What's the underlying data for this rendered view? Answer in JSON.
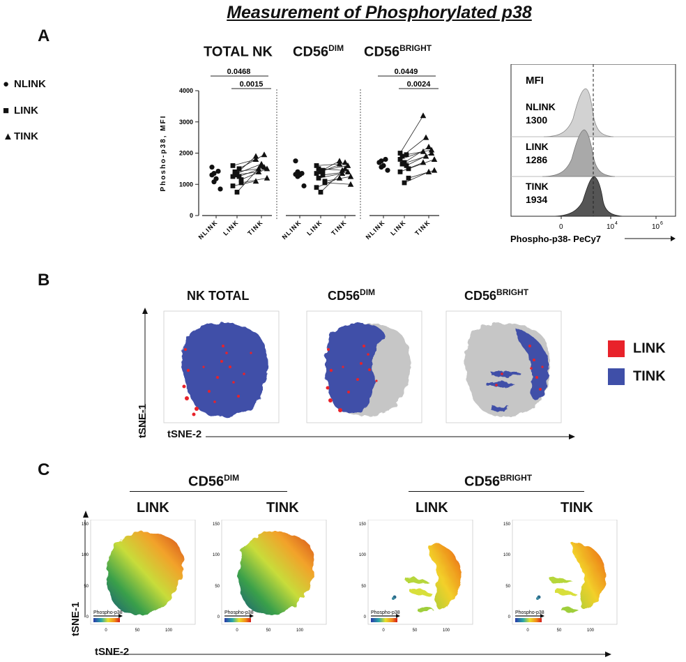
{
  "figure": {
    "title": "Measurement of Phosphorylated p38",
    "panels": {
      "a": "A",
      "b": "B",
      "c": "C"
    }
  },
  "legend_a": [
    {
      "symbol": "●",
      "label": "NLINK"
    },
    {
      "symbol": "■",
      "label": "LINK"
    },
    {
      "symbol": "▲",
      "label": "TINK"
    }
  ],
  "groups": [
    {
      "base": "TOTAL NK",
      "sup": ""
    },
    {
      "base": "CD56",
      "sup": "DIM"
    },
    {
      "base": "CD56",
      "sup": "BRIGHT"
    }
  ],
  "histogram": {
    "mfi_label": "MFI",
    "rows": [
      {
        "name": "NLINK",
        "value": "1300",
        "color": "#d2d2d2"
      },
      {
        "name": "LINK",
        "value": "1286",
        "color": "#a9a9a9"
      },
      {
        "name": "TINK",
        "value": "1934",
        "color": "#555555"
      }
    ],
    "ticks": [
      "0",
      "10",
      "10"
    ],
    "tick_exps": [
      "",
      "4",
      "6"
    ],
    "xlabel": "Phospho-p38- PeCy7"
  },
  "panel_b": {
    "plots": [
      {
        "base": "NK TOTAL",
        "sup": ""
      },
      {
        "base": "CD56",
        "sup": "DIM"
      },
      {
        "base": "CD56",
        "sup": "BRIGHT"
      }
    ],
    "ylabel": "tSNE-1",
    "xlabel": "tSNE-2",
    "legend": [
      {
        "label": "LINK",
        "color": "#e8222a"
      },
      {
        "label": "TINK",
        "color": "#3f4fa8"
      }
    ]
  },
  "panel_c": {
    "groups": [
      {
        "base": "CD56",
        "sup": "DIM"
      },
      {
        "base": "CD56",
        "sup": "BRIGHT"
      }
    ],
    "plots": [
      "LINK",
      "TINK",
      "LINK",
      "TINK"
    ],
    "colorbar_label": "Phospho-p38",
    "ylabel": "tSNE-1",
    "xlabel": "tSNE-2"
  },
  "chart_data": {
    "type": "scatter",
    "title": "Measurement of Phosphorylated p38",
    "ylabel": "Phosho-p38, MFI",
    "ylim": [
      0,
      4000
    ],
    "yticks": [
      "0",
      "1000",
      "2000",
      "3000",
      "4000"
    ],
    "groups": [
      {
        "name": "TOTAL NK",
        "categories": [
          "NLINK",
          "LINK",
          "TINK"
        ],
        "series": [
          {
            "name": "NLINK",
            "values": [
              1300,
              1350,
              1180,
              1420,
              850,
              1550,
              1080
            ]
          },
          {
            "name": "LINK",
            "values": [
              1600,
              1400,
              1350,
              1250,
              1050,
              950,
              1300,
              750,
              1500,
              1150,
              1250
            ]
          },
          {
            "name": "TINK",
            "values": [
              1800,
              1500,
              1650,
              1550,
              1200,
              1100,
              1400,
              1600,
              1950,
              1500,
              1900
            ]
          }
        ],
        "significance": [
          "0.0468",
          "0.0015"
        ]
      },
      {
        "name": "CD56 DIM",
        "categories": [
          "NLINK",
          "LINK",
          "TINK"
        ],
        "series": [
          {
            "name": "NLINK",
            "values": [
              1750,
              1400,
              1300,
              1350,
              950,
              1320,
              1250
            ]
          },
          {
            "name": "LINK",
            "values": [
              1600,
              1500,
              1400,
              1300,
              1050,
              900,
              1200,
              750,
              1450,
              1100,
              1350
            ]
          },
          {
            "name": "TINK",
            "values": [
              1650,
              1450,
              1700,
              1400,
              1000,
              1200,
              1350,
              1500,
              1600,
              1250,
              1750
            ]
          }
        ],
        "significance": []
      },
      {
        "name": "CD56 BRIGHT",
        "categories": [
          "NLINK",
          "LINK",
          "TINK"
        ],
        "series": [
          {
            "name": "NLINK",
            "values": [
              1700,
              1750,
              1600,
              1800,
              1450,
              1700,
              1550
            ]
          },
          {
            "name": "LINK",
            "values": [
              2000,
              1900,
              1700,
              1600,
              1500,
              1400,
              1650,
              1050,
              1950,
              1200,
              1800
            ]
          },
          {
            "name": "TINK",
            "values": [
              3200,
              2500,
              2200,
              2000,
              1800,
              1700,
              1900,
              1400,
              2100,
              1450,
              2050
            ]
          }
        ],
        "significance": [
          "0.0449",
          "0.0024"
        ]
      }
    ]
  }
}
